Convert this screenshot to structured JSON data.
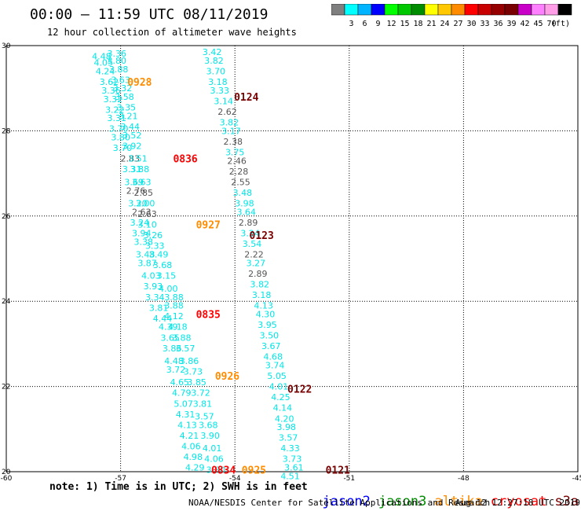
{
  "header": {
    "title": "00:00 – 11:59 UTC 08/11/2019",
    "subtitle": "12 hour collection of altimeter wave heights"
  },
  "colorbar": {
    "colors": [
      "#7f7f7f",
      "#00ffff",
      "#00b4ff",
      "#0000ff",
      "#00ff00",
      "#00c800",
      "#008c00",
      "#ffff00",
      "#ffc800",
      "#ff8c00",
      "#ff0000",
      "#c80000",
      "#960000",
      "#780000",
      "#c800c8",
      "#ff80ff",
      "#ff9ee6",
      "#000000"
    ],
    "labels": [
      "3",
      "6",
      "9",
      "12",
      "15",
      "18",
      "21",
      "24",
      "27",
      "30",
      "33",
      "36",
      "39",
      "42",
      "45",
      "70"
    ],
    "unit": "(ft)"
  },
  "footer": {
    "note": "note: 1) Time is in UTC; 2) SWH is in feet",
    "credit": "NOAA/NESDIS Center for Satellite Applications and Research",
    "timestamp": "Aug 12 12:27:18 UTC 2019",
    "legend": [
      {
        "label": "jason2",
        "color": "#0000ff"
      },
      {
        "label": "jason3",
        "color": "#008c00"
      },
      {
        "label": "altika",
        "color": "#ff8c00"
      },
      {
        "label": "cryosat",
        "color": "#ff0000"
      },
      {
        "label": "s3a",
        "color": "#780000"
      }
    ]
  },
  "chart_data": {
    "type": "scatter",
    "xlim": [
      -60,
      -45
    ],
    "ylim": [
      20,
      30
    ],
    "xticks": [
      "-60",
      "-57",
      "-54",
      "-51",
      "-48",
      "-45"
    ],
    "yticks": [
      "20",
      "22",
      "24",
      "26",
      "28",
      "30"
    ],
    "grid": true,
    "track_labels": [
      {
        "text": "0928",
        "x": -56.5,
        "y": 29.15,
        "color": "#ff8c00"
      },
      {
        "text": "0124",
        "x": -53.7,
        "y": 28.8,
        "color": "#780000"
      },
      {
        "text": "0836",
        "x": -55.3,
        "y": 27.35,
        "color": "#ff0000"
      },
      {
        "text": "0927",
        "x": -54.7,
        "y": 25.8,
        "color": "#ff8c00"
      },
      {
        "text": "0123",
        "x": -53.3,
        "y": 25.55,
        "color": "#780000"
      },
      {
        "text": "0835",
        "x": -54.7,
        "y": 23.7,
        "color": "#ff0000"
      },
      {
        "text": "0926",
        "x": -54.2,
        "y": 22.25,
        "color": "#ff8c00"
      },
      {
        "text": "0122",
        "x": -52.3,
        "y": 21.95,
        "color": "#780000"
      },
      {
        "text": "0834",
        "x": -54.3,
        "y": 20.05,
        "color": "#ff0000"
      },
      {
        "text": "0925",
        "x": -53.5,
        "y": 20.05,
        "color": "#ff8c00"
      },
      {
        "text": "0121",
        "x": -51.3,
        "y": 20.05,
        "color": "#780000"
      }
    ],
    "series": [
      {
        "name": "track-0128",
        "color": "#00e6e6",
        "points": [
          [
            -57.5,
            29.75,
            "4.48"
          ],
          [
            -57.1,
            29.82,
            "3.36"
          ],
          [
            -57.45,
            29.6,
            "4.05"
          ],
          [
            -57.1,
            29.65,
            "3.80"
          ],
          [
            -57.4,
            29.4,
            "4.24"
          ],
          [
            -57.05,
            29.45,
            "3.88"
          ],
          [
            -57.3,
            29.15,
            "3.62"
          ],
          [
            -57.0,
            29.2,
            "3.63"
          ],
          [
            -57.25,
            28.95,
            "3.36"
          ],
          [
            -56.95,
            29.0,
            "3.32"
          ],
          [
            -57.2,
            28.75,
            "3.32"
          ],
          [
            -56.9,
            28.8,
            "3.58"
          ],
          [
            -57.15,
            28.5,
            "3.22"
          ],
          [
            -56.85,
            28.55,
            "3.35"
          ],
          [
            -57.1,
            28.3,
            "3.31"
          ],
          [
            -56.8,
            28.35,
            "3.21"
          ],
          [
            -57.05,
            28.05,
            "3.70"
          ],
          [
            -56.75,
            28.1,
            "3.44"
          ],
          [
            -57.0,
            27.85,
            "3.80"
          ],
          [
            -56.7,
            27.9,
            "3.52"
          ],
          [
            -56.95,
            27.6,
            "3.70"
          ],
          [
            -56.7,
            27.65,
            "3.92"
          ],
          [
            -56.75,
            27.35,
            "2.83"
          ],
          [
            -56.55,
            27.35,
            "3.51"
          ],
          [
            -56.7,
            27.1,
            "3.31"
          ],
          [
            -56.5,
            27.1,
            "3.88"
          ],
          [
            -56.65,
            26.8,
            "3.69"
          ],
          [
            -56.45,
            26.8,
            "3.63"
          ],
          [
            -56.6,
            26.6,
            "2.76"
          ],
          [
            -56.4,
            26.55,
            "2.85"
          ],
          [
            -56.55,
            26.3,
            "3.20"
          ],
          [
            -56.35,
            26.3,
            "3.00"
          ],
          [
            -56.45,
            26.1,
            "2.63"
          ],
          [
            -56.3,
            26.05,
            "2.63"
          ],
          [
            -56.5,
            25.85,
            "3.24"
          ],
          [
            -56.3,
            25.8,
            "3.10"
          ],
          [
            -56.45,
            25.6,
            "3.94"
          ],
          [
            -56.15,
            25.55,
            "3.26"
          ],
          [
            -56.4,
            25.4,
            "3.38"
          ],
          [
            -56.1,
            25.3,
            "3.33"
          ],
          [
            -56.35,
            25.1,
            "3.48"
          ],
          [
            -56.0,
            25.1,
            "3.49"
          ],
          [
            -56.3,
            24.9,
            "3.87"
          ],
          [
            -55.9,
            24.85,
            "3.68"
          ],
          [
            -56.2,
            24.6,
            "4.03"
          ],
          [
            -55.8,
            24.6,
            "3.15"
          ],
          [
            -56.15,
            24.35,
            "3.93"
          ],
          [
            -55.75,
            24.3,
            "4.00"
          ],
          [
            -56.1,
            24.1,
            "3.34"
          ],
          [
            -55.6,
            24.1,
            "3.88"
          ],
          [
            -56.0,
            23.85,
            "3.81"
          ],
          [
            -55.6,
            23.9,
            "3.88"
          ],
          [
            -55.9,
            23.6,
            "4.44"
          ],
          [
            -55.6,
            23.65,
            "4.12"
          ],
          [
            -55.75,
            23.4,
            "4.39"
          ],
          [
            -55.5,
            23.4,
            "4.18"
          ],
          [
            -55.7,
            23.15,
            "3.65"
          ],
          [
            -55.4,
            23.15,
            "3.88"
          ],
          [
            -55.65,
            22.9,
            "3.86"
          ],
          [
            -55.3,
            22.9,
            "3.57"
          ],
          [
            -55.6,
            22.6,
            "4.48"
          ],
          [
            -55.2,
            22.6,
            "3.86"
          ],
          [
            -55.55,
            22.4,
            "3.72"
          ],
          [
            -55.1,
            22.35,
            "3.73"
          ],
          [
            -55.45,
            22.1,
            "4.65"
          ],
          [
            -55.0,
            22.1,
            "3.85"
          ],
          [
            -55.4,
            21.85,
            "4.79"
          ],
          [
            -54.9,
            21.85,
            "3.72"
          ],
          [
            -55.35,
            21.6,
            "5.07"
          ],
          [
            -54.85,
            21.6,
            "3.81"
          ],
          [
            -55.3,
            21.35,
            "4.31"
          ],
          [
            -54.8,
            21.3,
            "3.57"
          ],
          [
            -55.25,
            21.1,
            "4.13"
          ],
          [
            -54.7,
            21.1,
            "3.68"
          ],
          [
            -55.2,
            20.85,
            "4.21"
          ],
          [
            -54.65,
            20.85,
            "3.90"
          ],
          [
            -55.15,
            20.6,
            "4.06"
          ],
          [
            -54.6,
            20.55,
            "4.01"
          ],
          [
            -55.1,
            20.35,
            "4.98"
          ],
          [
            -54.55,
            20.3,
            "4.06"
          ],
          [
            -55.05,
            20.1,
            "4.29"
          ],
          [
            -54.5,
            20.05,
            "3.80"
          ]
        ]
      },
      {
        "name": "track-0121",
        "color": "#00e6e6",
        "points": [
          [
            -54.6,
            29.85,
            "3.42"
          ],
          [
            -54.55,
            29.65,
            "3.82"
          ],
          [
            -54.5,
            29.4,
            "3.70"
          ],
          [
            -54.45,
            29.15,
            "3.18"
          ],
          [
            -54.4,
            28.95,
            "3.33"
          ],
          [
            -54.3,
            28.7,
            "3.14"
          ],
          [
            -54.2,
            28.45,
            "2.62"
          ],
          [
            -54.15,
            28.2,
            "3.82"
          ],
          [
            -54.1,
            28.0,
            "3.17"
          ],
          [
            -54.05,
            27.75,
            "2.38"
          ],
          [
            -54.0,
            27.5,
            "3.75"
          ],
          [
            -53.95,
            27.3,
            "2.46"
          ],
          [
            -53.9,
            27.05,
            "2.28"
          ],
          [
            -53.85,
            26.8,
            "2.55"
          ],
          [
            -53.8,
            26.55,
            "3.48"
          ],
          [
            -53.75,
            26.3,
            "3.98"
          ],
          [
            -53.7,
            26.1,
            "3.64"
          ],
          [
            -53.65,
            25.85,
            "2.89"
          ],
          [
            -53.6,
            25.6,
            "3.24"
          ],
          [
            -53.55,
            25.35,
            "3.54"
          ],
          [
            -53.5,
            25.1,
            "2.22"
          ],
          [
            -53.45,
            24.9,
            "3.27"
          ],
          [
            -53.4,
            24.65,
            "2.89"
          ],
          [
            -53.35,
            24.4,
            "3.82"
          ],
          [
            -53.3,
            24.15,
            "3.18"
          ],
          [
            -53.25,
            23.9,
            "4.13"
          ],
          [
            -53.2,
            23.7,
            "4.30"
          ],
          [
            -53.15,
            23.45,
            "3.95"
          ],
          [
            -53.1,
            23.2,
            "3.50"
          ],
          [
            -53.05,
            22.95,
            "3.67"
          ],
          [
            -53.0,
            22.7,
            "4.68"
          ],
          [
            -52.95,
            22.5,
            "3.74"
          ],
          [
            -52.9,
            22.25,
            "5.05"
          ],
          [
            -52.85,
            22.0,
            "4.01"
          ],
          [
            -52.8,
            21.75,
            "4.25"
          ],
          [
            -52.75,
            21.5,
            "4.14"
          ],
          [
            -52.7,
            21.25,
            "4.20"
          ],
          [
            -52.65,
            21.05,
            "3.98"
          ],
          [
            -52.6,
            20.8,
            "3.57"
          ],
          [
            -52.55,
            20.55,
            "4.33"
          ],
          [
            -52.5,
            20.3,
            "3.73"
          ],
          [
            -52.45,
            20.1,
            "3.61"
          ],
          [
            -52.55,
            19.9,
            "4.51"
          ]
        ]
      }
    ]
  }
}
